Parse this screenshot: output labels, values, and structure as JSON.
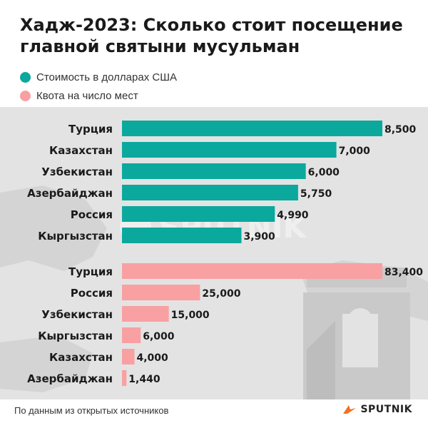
{
  "title": "Хадж-2023: Сколько стоит посещение главной святыни мусульман",
  "legend": [
    {
      "label": "Стоимость в долларах США",
      "color": "#0ba89e"
    },
    {
      "label": "Квота на число мест",
      "color": "#f9a0a2"
    }
  ],
  "chart_data": [
    {
      "type": "bar",
      "orientation": "horizontal",
      "series_label": "Стоимость в долларах США",
      "color": "#0ba89e",
      "categories": [
        "Турция",
        "Казахстан",
        "Узбекистан",
        "Азербайджан",
        "Россия",
        "Кыргызстан"
      ],
      "values": [
        8500,
        7000,
        6000,
        5750,
        4990,
        3900
      ],
      "value_labels": [
        "8,500",
        "7,000",
        "6,000",
        "5,750",
        "4,990",
        "3,900"
      ],
      "xlim": [
        0,
        8500
      ]
    },
    {
      "type": "bar",
      "orientation": "horizontal",
      "series_label": "Квота на число мест",
      "color": "#f9a0a2",
      "categories": [
        "Турция",
        "Россия",
        "Узбекистан",
        "Кыргызстан",
        "Казахстан",
        "Азербайджан"
      ],
      "values": [
        83400,
        25000,
        15000,
        6000,
        4000,
        1440
      ],
      "value_labels": [
        "83,400",
        "25,000",
        "15,000",
        "6,000",
        "4,000",
        "1,440"
      ],
      "xlim": [
        0,
        83400
      ]
    }
  ],
  "watermark": "SPUTNIK",
  "footer": "По данным из открытых источников",
  "brand": "SPUTNIK",
  "icons": {
    "brand": "sputnik-logo-icon",
    "background": "kaaba-illustration-icon"
  }
}
